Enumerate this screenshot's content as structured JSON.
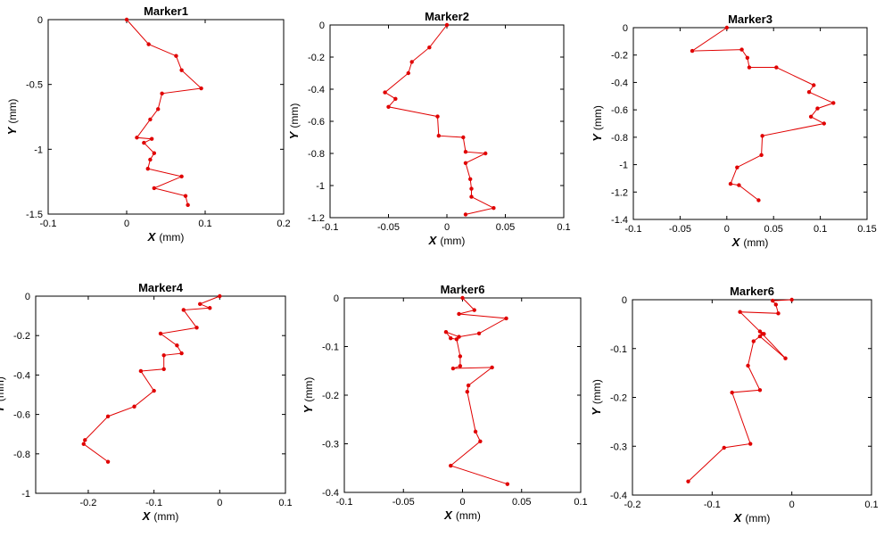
{
  "chart_data": [
    {
      "type": "line",
      "title": "Marker1",
      "xlabel_var": "X",
      "xlabel_unit": "(mm)",
      "ylabel_var": "Y",
      "ylabel_unit": "(mm)",
      "xlim": [
        -0.1,
        0.2
      ],
      "ylim": [
        -1.5,
        0
      ],
      "xticks": [
        -0.1,
        0,
        0.1,
        0.2
      ],
      "xtick_labels": [
        "-0.1",
        "0",
        "0.1",
        "0.2"
      ],
      "yticks": [
        0,
        -0.5,
        -1,
        -1.5
      ],
      "ytick_labels": [
        "0",
        "-0.5",
        "-1",
        "-1.5"
      ],
      "color": "#e00000",
      "series": [
        {
          "x": [
            0,
            0.028,
            0.063,
            0.07,
            0.095,
            0.045,
            0.04,
            0.03,
            0.013,
            0.032,
            0.022,
            0.035,
            0.03,
            0.027,
            0.07,
            0.035,
            0.075,
            0.078
          ],
          "y": [
            0,
            -0.19,
            -0.28,
            -0.39,
            -0.53,
            -0.57,
            -0.69,
            -0.77,
            -0.91,
            -0.92,
            -0.95,
            -1.03,
            -1.08,
            -1.15,
            -1.21,
            -1.3,
            -1.36,
            -1.43
          ]
        }
      ]
    },
    {
      "type": "line",
      "title": "Marker2",
      "xlabel_var": "X",
      "xlabel_unit": "(mm)",
      "ylabel_var": "Y",
      "ylabel_unit": "(mm)",
      "xlim": [
        -0.1,
        0.1
      ],
      "ylim": [
        -1.2,
        0
      ],
      "xticks": [
        -0.1,
        -0.05,
        0,
        0.05,
        0.1
      ],
      "xtick_labels": [
        "-0.1",
        "-0.05",
        "0",
        "0.05",
        "0.1"
      ],
      "yticks": [
        0,
        -0.2,
        -0.4,
        -0.6,
        -0.8,
        -1,
        -1.2
      ],
      "ytick_labels": [
        "0",
        "-0.2",
        "-0.4",
        "-0.6",
        "-0.8",
        "-1",
        "-1.2"
      ],
      "color": "#e00000",
      "series": [
        {
          "x": [
            0,
            -0.015,
            -0.03,
            -0.033,
            -0.053,
            -0.044,
            -0.05,
            -0.008,
            -0.007,
            0.014,
            0.016,
            0.033,
            0.016,
            0.02,
            0.021,
            0.021,
            0.04,
            0.016
          ],
          "y": [
            0,
            -0.14,
            -0.23,
            -0.3,
            -0.42,
            -0.46,
            -0.51,
            -0.57,
            -0.69,
            -0.7,
            -0.79,
            -0.8,
            -0.86,
            -0.96,
            -1.02,
            -1.07,
            -1.14,
            -1.18
          ]
        }
      ]
    },
    {
      "type": "line",
      "title": "Marker3",
      "xlabel_var": "X",
      "xlabel_unit": "(mm)",
      "ylabel_var": "Y",
      "ylabel_unit": "(mm)",
      "xlim": [
        -0.1,
        0.15
      ],
      "ylim": [
        -1.4,
        0
      ],
      "xticks": [
        -0.1,
        -0.05,
        0,
        0.05,
        0.1,
        0.15
      ],
      "xtick_labels": [
        "-0.1",
        "-0.05",
        "0",
        "0.05",
        "0.1",
        "0.15"
      ],
      "yticks": [
        0,
        -0.2,
        -0.4,
        -0.6,
        -0.8,
        -1,
        -1.2,
        -1.4
      ],
      "ytick_labels": [
        "0",
        "-0.2",
        "-0.4",
        "-0.6",
        "-0.8",
        "-1",
        "-1.2",
        "-1.4"
      ],
      "color": "#e00000",
      "series": [
        {
          "x": [
            0,
            -0.037,
            0.016,
            0.022,
            0.024,
            0.053,
            0.093,
            0.088,
            0.114,
            0.097,
            0.09,
            0.104,
            0.038,
            0.037,
            0.011,
            0.004,
            0.013,
            0.034
          ],
          "y": [
            0,
            -0.17,
            -0.16,
            -0.22,
            -0.29,
            -0.29,
            -0.42,
            -0.47,
            -0.55,
            -0.59,
            -0.65,
            -0.7,
            -0.79,
            -0.93,
            -1.02,
            -1.14,
            -1.15,
            -1.26
          ]
        }
      ]
    },
    {
      "type": "line",
      "title": "Marker4",
      "xlabel_var": "X",
      "xlabel_unit": "(mm)",
      "ylabel_var": "Y",
      "ylabel_unit": "(mm)",
      "xlim": [
        -0.28,
        0.1
      ],
      "ylim": [
        -1,
        0
      ],
      "xticks": [
        -0.2,
        -0.1,
        0,
        0.1
      ],
      "xtick_labels": [
        "-0.2",
        "-0.1",
        "0",
        "0.1"
      ],
      "yticks": [
        0,
        -0.2,
        -0.4,
        -0.6,
        -0.8,
        -1
      ],
      "ytick_labels": [
        "0",
        "-0.2",
        "-0.4",
        "-0.6",
        "-0.8",
        "-1"
      ],
      "color": "#e00000",
      "series": [
        {
          "x": [
            0,
            -0.03,
            -0.015,
            -0.055,
            -0.035,
            -0.09,
            -0.065,
            -0.058,
            -0.085,
            -0.085,
            -0.12,
            -0.1,
            -0.13,
            -0.17,
            -0.205,
            -0.207,
            -0.17
          ],
          "y": [
            0,
            -0.04,
            -0.06,
            -0.07,
            -0.16,
            -0.19,
            -0.25,
            -0.29,
            -0.3,
            -0.37,
            -0.38,
            -0.48,
            -0.56,
            -0.61,
            -0.73,
            -0.75,
            -0.84
          ]
        }
      ]
    },
    {
      "type": "line",
      "title": "Marker6",
      "xlabel_var": "X",
      "xlabel_unit": "(mm)",
      "ylabel_var": "Y",
      "ylabel_unit": "(mm)",
      "xlim": [
        -0.1,
        0.1
      ],
      "ylim": [
        -0.4,
        0
      ],
      "xticks": [
        -0.1,
        -0.05,
        0,
        0.05,
        0.1
      ],
      "xtick_labels": [
        "-0.1",
        "-0.05",
        "0",
        "0.05",
        "0.1"
      ],
      "yticks": [
        0,
        -0.1,
        -0.2,
        -0.3,
        -0.4
      ],
      "ytick_labels": [
        "0",
        "-0.1",
        "-0.2",
        "-0.3",
        "-0.4"
      ],
      "color": "#e00000",
      "series": [
        {
          "x": [
            0,
            0.01,
            -0.003,
            0.037,
            0.014,
            -0.003,
            -0.014,
            -0.01,
            -0.005,
            -0.002,
            -0.002,
            -0.008,
            0.025,
            0.005,
            0.004,
            0.011,
            0.015,
            -0.01,
            0.038
          ],
          "y": [
            0,
            -0.025,
            -0.033,
            -0.042,
            -0.073,
            -0.08,
            -0.07,
            -0.083,
            -0.085,
            -0.12,
            -0.14,
            -0.145,
            -0.143,
            -0.18,
            -0.193,
            -0.275,
            -0.295,
            -0.345,
            -0.383
          ]
        }
      ]
    },
    {
      "type": "line",
      "title": "Marker6",
      "xlabel_var": "X",
      "xlabel_unit": "(mm)",
      "ylabel_var": "Y",
      "ylabel_unit": "(mm)",
      "xlim": [
        -0.2,
        0.1
      ],
      "ylim": [
        -0.4,
        0
      ],
      "xticks": [
        -0.2,
        -0.1,
        0,
        0.1
      ],
      "xtick_labels": [
        "-0.2",
        "-0.1",
        "0",
        "0.1"
      ],
      "yticks": [
        0,
        -0.1,
        -0.2,
        -0.3,
        -0.4
      ],
      "ytick_labels": [
        "0",
        "-0.1",
        "-0.2",
        "-0.3",
        "-0.4"
      ],
      "color": "#e00000",
      "series": [
        {
          "x": [
            0,
            -0.024,
            -0.02,
            -0.017,
            -0.065,
            -0.04,
            -0.035,
            -0.037,
            -0.008,
            -0.04,
            -0.048,
            -0.055,
            -0.04,
            -0.075,
            -0.052,
            -0.085,
            -0.13
          ],
          "y": [
            0,
            -0.002,
            -0.01,
            -0.028,
            -0.025,
            -0.065,
            -0.07,
            -0.07,
            -0.12,
            -0.075,
            -0.085,
            -0.135,
            -0.185,
            -0.19,
            -0.295,
            -0.303,
            -0.372
          ]
        }
      ]
    }
  ]
}
